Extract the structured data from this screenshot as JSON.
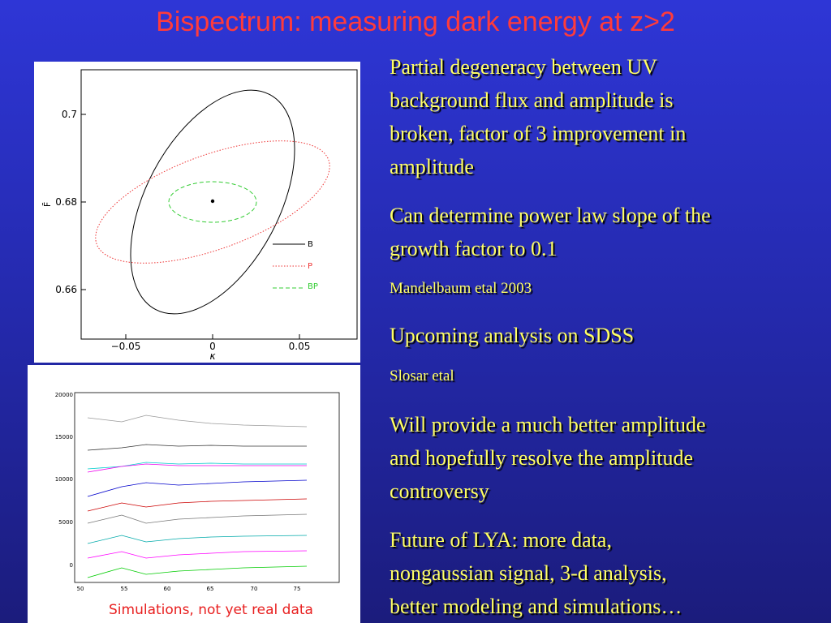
{
  "header": {
    "title": "Bispectrum: measuring dark energy at z>2"
  },
  "figure_top": {
    "yticks": [
      "0.7",
      "0.68",
      "0.66"
    ],
    "xticks": [
      "−0.05",
      "0",
      "0.05"
    ],
    "xlabel": "κ",
    "ylabel": "F̄",
    "legend": [
      "B",
      "P",
      "BP"
    ]
  },
  "figure_bottom": {
    "yticks": [
      "20000",
      "15000",
      "10000",
      "5000",
      "0"
    ],
    "xticks": [
      "50",
      "55",
      "60",
      "65",
      "70",
      "75"
    ],
    "caption": "Simulations, not yet real data"
  },
  "paragraphs": [
    {
      "lines": [
        "Partial degeneracy between UV",
        "background flux and amplitude is",
        "broken, factor of 3 improvement in",
        "amplitude"
      ]
    },
    {
      "lines": [
        "Can determine power law slope of the",
        "growth factor to 0.1"
      ]
    },
    {
      "lines": [
        "Mandelbaum etal 2003"
      ]
    },
    {
      "lines": [
        "Upcoming analysis on SDSS"
      ]
    },
    {
      "lines": [
        "Slosar etal"
      ]
    },
    {
      "lines": [
        "Will provide a much better amplitude",
        "and hopefully resolve the amplitude",
        "controversy"
      ]
    },
    {
      "lines": [
        "Future of LYA: more data,",
        "nongaussian signal, 3-d analysis,",
        "better modeling and simulations…"
      ]
    }
  ]
}
